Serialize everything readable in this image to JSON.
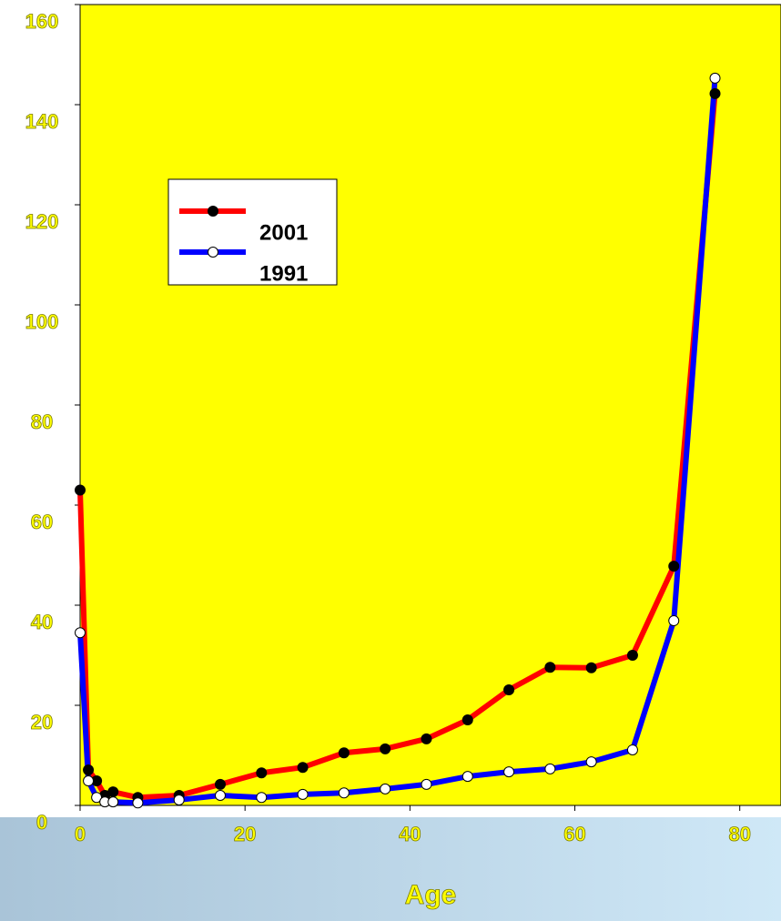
{
  "chart_data": {
    "type": "line",
    "x_label": "Age",
    "x": [
      0,
      1,
      2,
      3,
      4,
      7,
      12,
      17,
      22,
      27,
      32,
      37,
      42,
      47,
      52,
      57,
      62,
      67,
      72,
      77
    ],
    "series": [
      {
        "name": "2001",
        "color": "#ff0000",
        "marker_color": "#000000",
        "values": [
          63,
          7.1,
          4.9,
          2,
          2.7,
          1.6,
          2,
          4.2,
          6.5,
          7.6,
          10.5,
          11.3,
          13.3,
          17.1,
          23.1,
          27.6,
          27.5,
          30,
          47.8,
          142.2
        ]
      },
      {
        "name": "1991",
        "color": "#0000ff",
        "marker_color": "#ffffff",
        "values": [
          34.5,
          4.9,
          1.6,
          0.7,
          0.7,
          0.5,
          1.1,
          2,
          1.6,
          2.2,
          2.5,
          3.3,
          4.2,
          5.8,
          6.7,
          7.3,
          8.7,
          11.1,
          36.9,
          145.3
        ]
      }
    ],
    "xlim": [
      0,
      85
    ],
    "xticks": [
      0,
      20,
      40,
      60,
      80
    ],
    "ylim": [
      0,
      160
    ],
    "yticks": [
      0,
      20,
      40,
      60,
      80,
      100,
      120,
      140,
      160
    ],
    "legend": "upper-left"
  }
}
